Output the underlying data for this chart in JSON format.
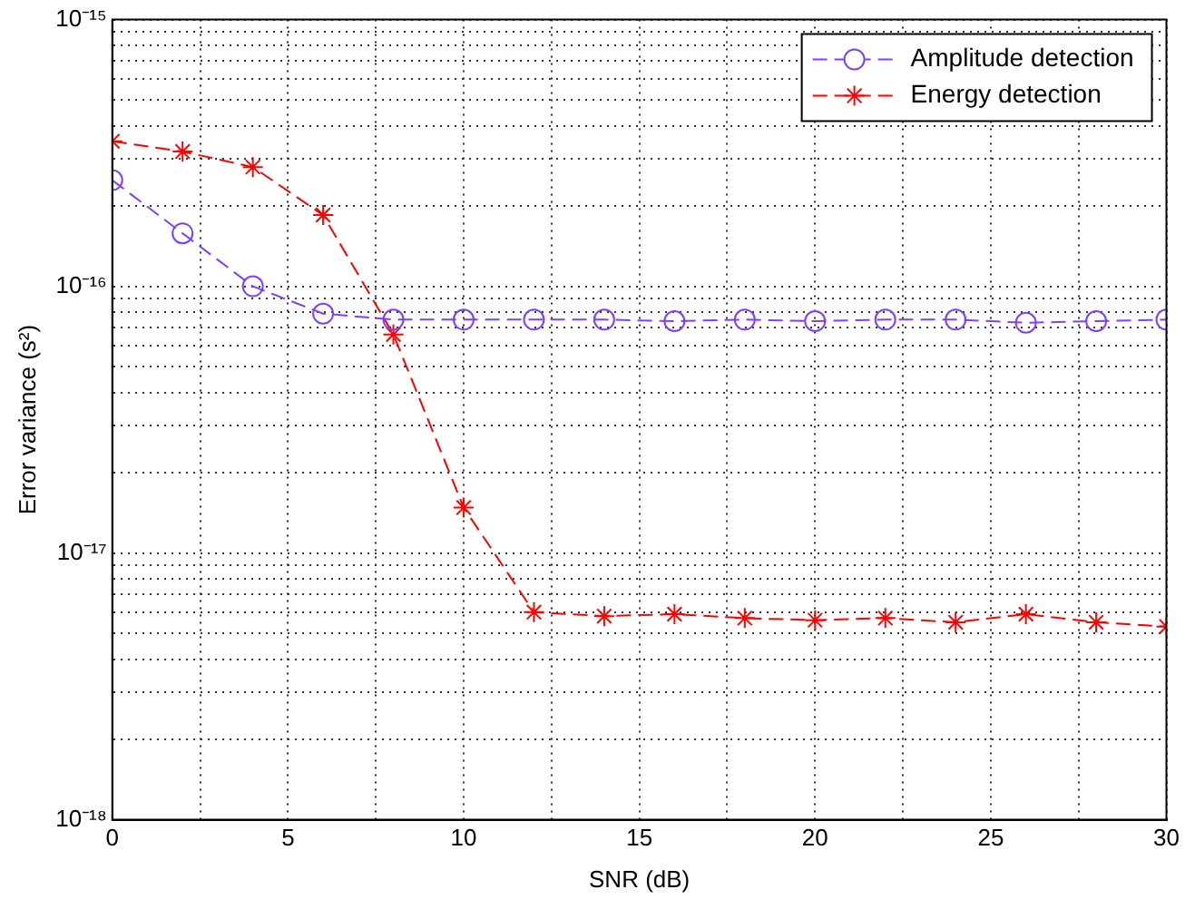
{
  "chart_data": {
    "type": "line",
    "xlabel": "SNR (dB)",
    "ylabel": "Error variance (s²)",
    "x": [
      0,
      2,
      4,
      6,
      8,
      10,
      12,
      14,
      16,
      18,
      20,
      22,
      24,
      26,
      28,
      30
    ],
    "series": [
      {
        "name": "Amplitude detection",
        "color": "#7f3fff",
        "marker": "circle",
        "line_style": "dashed",
        "values": [
          2.5e-16,
          1.58e-16,
          1e-16,
          7.9e-17,
          7.5e-17,
          7.5e-17,
          7.5e-17,
          7.5e-17,
          7.4e-17,
          7.5e-17,
          7.4e-17,
          7.5e-17,
          7.5e-17,
          7.3e-17,
          7.4e-17,
          7.5e-17
        ]
      },
      {
        "name": "Energy detection",
        "color": "#ff0000",
        "marker": "cross",
        "line_style": "dashed",
        "values": [
          3.5e-16,
          3.2e-16,
          2.8e-16,
          1.85e-16,
          6.6e-17,
          1.48e-17,
          6e-18,
          5.8e-18,
          5.9e-18,
          5.7e-18,
          5.6e-18,
          5.7e-18,
          5.5e-18,
          5.9e-18,
          5.5e-18,
          5.3e-18
        ]
      }
    ],
    "log": "y",
    "xlim": [
      0,
      30
    ],
    "xticks": [
      0,
      {
        "value": 2.5,
        "label": null
      },
      5,
      {
        "value": 7.5,
        "label": null
      },
      10,
      {
        "value": 12.5,
        "label": null
      },
      15,
      {
        "value": 17.5,
        "label": null
      },
      20,
      {
        "value": 22.5,
        "label": null
      },
      25,
      {
        "value": 27.5,
        "label": null
      },
      30
    ],
    "ylim": [
      1e-18,
      1e-15
    ],
    "yticks": [
      {
        "value": 1e-18,
        "label": "10⁻¹⁸"
      },
      {
        "value": 2e-18,
        "label": null
      },
      {
        "value": 3e-18,
        "label": null
      },
      {
        "value": 4e-18,
        "label": null
      },
      {
        "value": 5e-18,
        "label": null
      },
      {
        "value": 6e-18,
        "label": null
      },
      {
        "value": 7e-18,
        "label": null
      },
      {
        "value": 8e-18,
        "label": null
      },
      {
        "value": 9e-18,
        "label": null
      },
      {
        "value": 1e-17,
        "label": "10⁻¹⁷"
      },
      {
        "value": 2e-17,
        "label": null
      },
      {
        "value": 3e-17,
        "label": null
      },
      {
        "value": 4e-17,
        "label": null
      },
      {
        "value": 5e-17,
        "label": null
      },
      {
        "value": 6e-17,
        "label": null
      },
      {
        "value": 7e-17,
        "label": null
      },
      {
        "value": 8e-17,
        "label": null
      },
      {
        "value": 9e-17,
        "label": null
      },
      {
        "value": 1e-16,
        "label": "10⁻¹⁶"
      },
      {
        "value": 2e-16,
        "label": null
      },
      {
        "value": 3e-16,
        "label": null
      },
      {
        "value": 4e-16,
        "label": null
      },
      {
        "value": 5e-16,
        "label": null
      },
      {
        "value": 6e-16,
        "label": null
      },
      {
        "value": 7e-16,
        "label": null
      },
      {
        "value": 8e-16,
        "label": null
      },
      {
        "value": 9e-16,
        "label": null
      },
      {
        "value": 1e-15,
        "label": "10⁻¹⁵"
      }
    ],
    "grid": true,
    "legend": "top right"
  }
}
